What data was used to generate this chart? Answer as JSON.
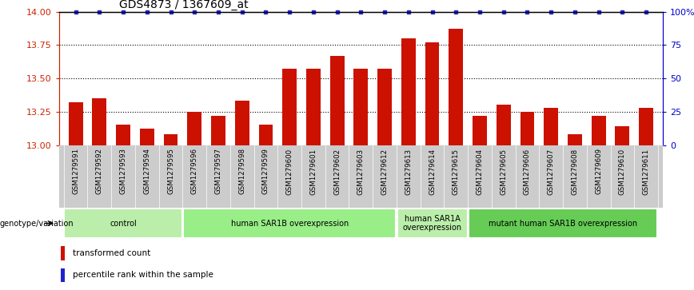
{
  "title": "GDS4873 / 1367609_at",
  "samples": [
    "GSM1279591",
    "GSM1279592",
    "GSM1279593",
    "GSM1279594",
    "GSM1279595",
    "GSM1279596",
    "GSM1279597",
    "GSM1279598",
    "GSM1279599",
    "GSM1279600",
    "GSM1279601",
    "GSM1279602",
    "GSM1279603",
    "GSM1279612",
    "GSM1279613",
    "GSM1279614",
    "GSM1279615",
    "GSM1279604",
    "GSM1279605",
    "GSM1279606",
    "GSM1279607",
    "GSM1279608",
    "GSM1279609",
    "GSM1279610",
    "GSM1279611"
  ],
  "red_values": [
    13.32,
    13.35,
    13.15,
    13.12,
    13.08,
    13.25,
    13.22,
    13.33,
    13.15,
    13.57,
    13.57,
    13.67,
    13.57,
    13.57,
    13.8,
    13.77,
    13.87,
    13.22,
    13.3,
    13.25,
    13.28,
    13.08,
    13.22,
    13.14,
    13.28
  ],
  "blue_values": [
    100,
    100,
    100,
    100,
    100,
    100,
    100,
    100,
    100,
    100,
    100,
    100,
    100,
    100,
    100,
    100,
    100,
    100,
    100,
    100,
    100,
    100,
    100,
    100,
    100
  ],
  "groups": [
    {
      "label": "control",
      "count": 5,
      "color": "#bbeeaa"
    },
    {
      "label": "human SAR1B overexpression",
      "count": 9,
      "color": "#99ee88"
    },
    {
      "label": "human SAR1A\noverexpression",
      "count": 3,
      "color": "#bbeeaa"
    },
    {
      "label": "mutant human SAR1B overexpression",
      "count": 8,
      "color": "#66cc55"
    }
  ],
  "ylim_left": [
    13.0,
    14.0
  ],
  "ylim_right": [
    0,
    100
  ],
  "yticks_left": [
    13.0,
    13.25,
    13.5,
    13.75,
    14.0
  ],
  "yticks_right": [
    0,
    25,
    50,
    75,
    100
  ],
  "bar_color": "#cc1100",
  "dot_color": "#2222cc",
  "bg_color": "#ffffff",
  "left_axis_color": "#cc2200",
  "right_axis_color": "#0000cc",
  "grid_color": "#000000",
  "tick_label_bg": "#cccccc",
  "genotype_label": "genotype/variation"
}
